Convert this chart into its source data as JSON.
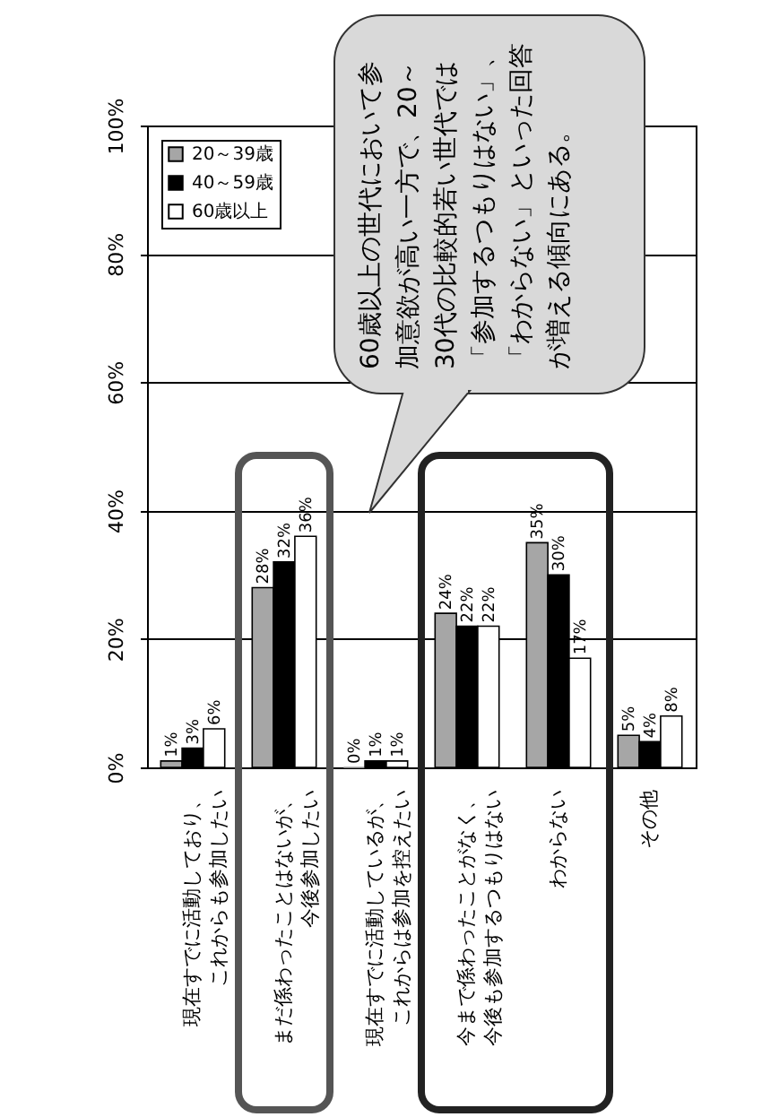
{
  "chart_data": {
    "type": "bar",
    "categories": [
      "現在すでに活動しており、これからも参加したい",
      "まだ係わったことはないが、今後参加したい",
      "現在すでに活動しているが、これからは参加を控えたい",
      "今まで係わったことがなく、今後も参加するつもりはない",
      "わからない",
      "その他"
    ],
    "series": [
      {
        "name": "20～39歳",
        "color": "#a6a6a6",
        "values": [
          1,
          28,
          0,
          24,
          35,
          5
        ],
        "value_labels": [
          "1%",
          "28%",
          "0%",
          "24%",
          "35%",
          "5%"
        ]
      },
      {
        "name": "40～59歳",
        "color": "#000000",
        "values": [
          3,
          32,
          1,
          22,
          30,
          4
        ],
        "value_labels": [
          "3%",
          "32%",
          "1%",
          "22%",
          "30%",
          "4%"
        ]
      },
      {
        "name": "60歳以上",
        "color": "#ffffff",
        "values": [
          6,
          36,
          1,
          22,
          17,
          8
        ],
        "value_labels": [
          "6%",
          "36%",
          "1%",
          "22%",
          "17%",
          "8%"
        ]
      }
    ],
    "ylim": [
      0,
      100
    ],
    "yticks": [
      {
        "value": 0,
        "label": "0%"
      },
      {
        "value": 20,
        "label": "20%"
      },
      {
        "value": 40,
        "label": "40%"
      },
      {
        "value": 60,
        "label": "60%"
      },
      {
        "value": 80,
        "label": "80%"
      },
      {
        "value": 100,
        "label": "100%"
      }
    ],
    "grid": "y",
    "legend": "top left",
    "annotations": [
      "60歳以上の世代において参加意欲が高い一方で、20～30代の比較的若い世代では「参加するつもりはない」、「わからない」といった回答が増える傾向にある。"
    ]
  }
}
